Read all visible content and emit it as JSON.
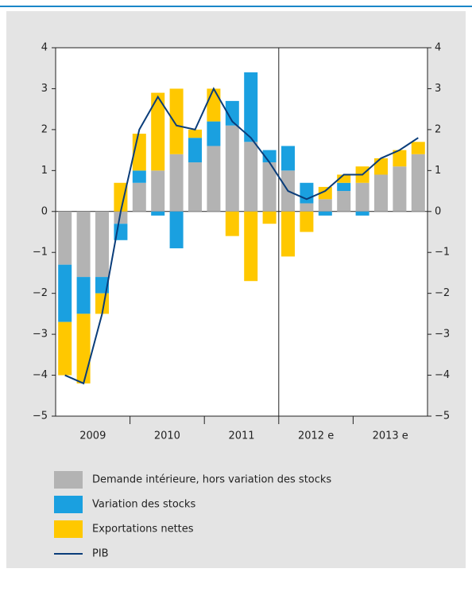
{
  "chart_data": {
    "type": "bar",
    "stacked": true,
    "groups": [
      "2009",
      "2010",
      "2011",
      "2012 e",
      "2013 e"
    ],
    "series": [
      {
        "name": "Demande intérieure, hors variation des stocks",
        "color": "#b3b3b3",
        "values": [
          -1.3,
          -1.6,
          -1.6,
          -0.3,
          0.7,
          1.0,
          1.4,
          1.2,
          1.6,
          2.1,
          1.7,
          1.2,
          1.0,
          0.2,
          0.3,
          0.5,
          0.7,
          0.9,
          1.1,
          1.4
        ]
      },
      {
        "name": "Variation des stocks",
        "color": "#1aa0e0",
        "values": [
          -1.4,
          -0.9,
          -0.4,
          -0.4,
          0.3,
          -0.1,
          -0.9,
          0.6,
          0.6,
          0.6,
          1.7,
          0.3,
          0.6,
          0.5,
          -0.1,
          0.2,
          -0.1,
          0,
          0,
          0
        ]
      },
      {
        "name": "Exportations nettes",
        "color": "#ffc800",
        "values": [
          -1.3,
          -1.7,
          -0.5,
          0.7,
          0.9,
          1.9,
          1.6,
          0.2,
          0.8,
          -0.6,
          -1.7,
          -0.3,
          -1.1,
          -0.5,
          0.3,
          0.2,
          0.4,
          0.4,
          0.4,
          0.3
        ]
      },
      {
        "name": "PIB",
        "color": "#0a3d7a",
        "type": "line",
        "values": [
          -4.0,
          -4.2,
          -2.5,
          0,
          2.0,
          2.8,
          2.1,
          2.0,
          3.0,
          2.2,
          1.8,
          1.2,
          0.5,
          0.3,
          0.5,
          0.9,
          0.9,
          1.3,
          1.5,
          1.8
        ]
      }
    ],
    "ylim": [
      -5,
      4
    ],
    "yticks": [
      {
        "value": -5,
        "label": "−5"
      },
      {
        "value": -4,
        "label": "−4"
      },
      {
        "value": -3,
        "label": "−3"
      },
      {
        "value": -2,
        "label": "−2"
      },
      {
        "value": -1,
        "label": "−1"
      },
      0,
      1,
      2,
      3,
      4
    ],
    "y2lim": [
      -5,
      4
    ],
    "y2ticks": [
      {
        "value": -5,
        "label": "−5"
      },
      {
        "value": -4,
        "label": "−4"
      },
      {
        "value": -3,
        "label": "−3"
      },
      {
        "value": -2,
        "label": "−2"
      },
      {
        "value": -1,
        "label": "−1"
      },
      0,
      1,
      2,
      3,
      4
    ]
  }
}
